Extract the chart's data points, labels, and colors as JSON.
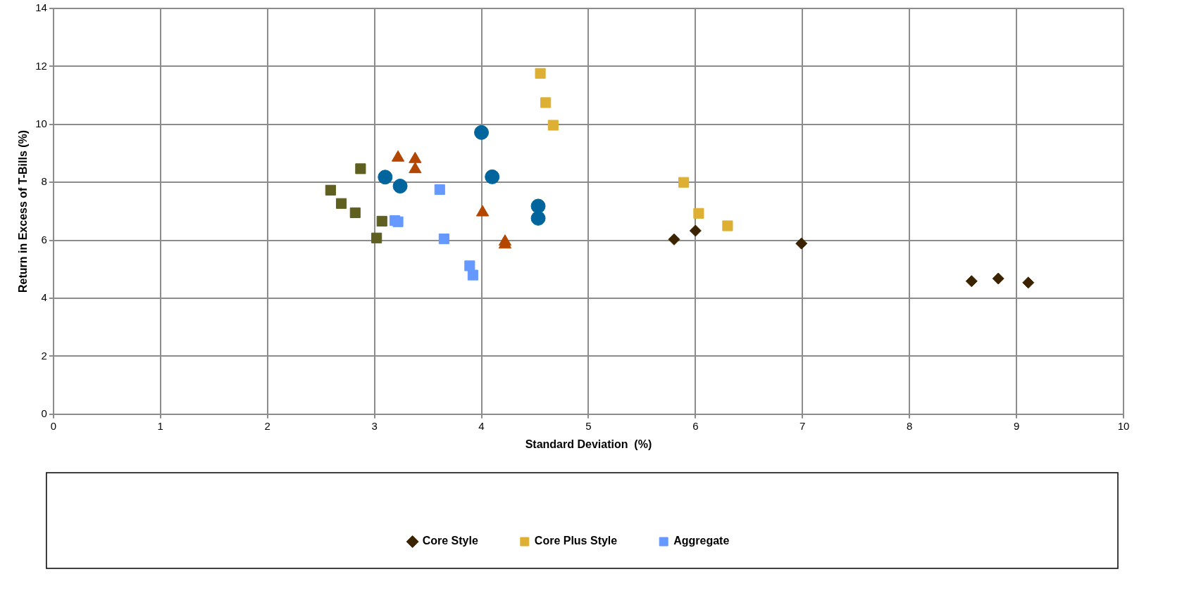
{
  "chart_data": {
    "type": "scatter",
    "xlabel": "Standard Deviation  (%)",
    "ylabel": "Return in Excess of T-Bills (%)",
    "xlim": [
      0,
      10
    ],
    "xticks": [
      0,
      1,
      2,
      3,
      4,
      5,
      6,
      7,
      8,
      9,
      10
    ],
    "ylim": [
      0,
      14
    ],
    "yticks": [
      0,
      2,
      4,
      6,
      8,
      10,
      12,
      14
    ],
    "grid": true,
    "legend": "bottom",
    "series": [
      {
        "color": "#5f5f20",
        "marker": "square",
        "x": [
          2.87,
          2.59,
          2.69,
          2.82,
          3.07,
          3.02
        ],
        "values": [
          8.47,
          7.73,
          7.27,
          6.95,
          6.66,
          6.08
        ]
      },
      {
        "color": "#b34700",
        "marker": "triangle",
        "x": [
          3.22,
          3.38,
          3.38,
          4.01,
          4.22,
          4.22
        ],
        "values": [
          8.85,
          8.8,
          8.45,
          6.96,
          5.95,
          5.85
        ]
      },
      {
        "color": "#00659c",
        "marker": "circle",
        "x": [
          3.1,
          3.24,
          4.0,
          4.1,
          4.53,
          4.53
        ],
        "values": [
          8.18,
          7.87,
          9.72,
          8.19,
          7.18,
          6.76
        ]
      },
      {
        "name": "Core Style",
        "color": "#3b2300",
        "marker": "diamond",
        "x": [
          5.8,
          6.0,
          6.99,
          8.58,
          8.83,
          9.11
        ],
        "values": [
          6.03,
          6.33,
          5.89,
          4.59,
          4.68,
          4.54
        ]
      },
      {
        "name": "Core Plus Style",
        "color": "#ddb034",
        "marker": "square",
        "x": [
          4.55,
          4.6,
          4.67,
          5.89,
          6.03,
          6.3
        ],
        "values": [
          11.76,
          10.75,
          9.97,
          8.0,
          6.93,
          6.5
        ]
      },
      {
        "name": "Aggregate",
        "color": "#6699ff",
        "marker": "square",
        "x": [
          3.61,
          3.19,
          3.22,
          3.65,
          3.89,
          3.92
        ],
        "values": [
          7.75,
          6.68,
          6.64,
          6.05,
          5.12,
          4.8
        ]
      }
    ]
  }
}
